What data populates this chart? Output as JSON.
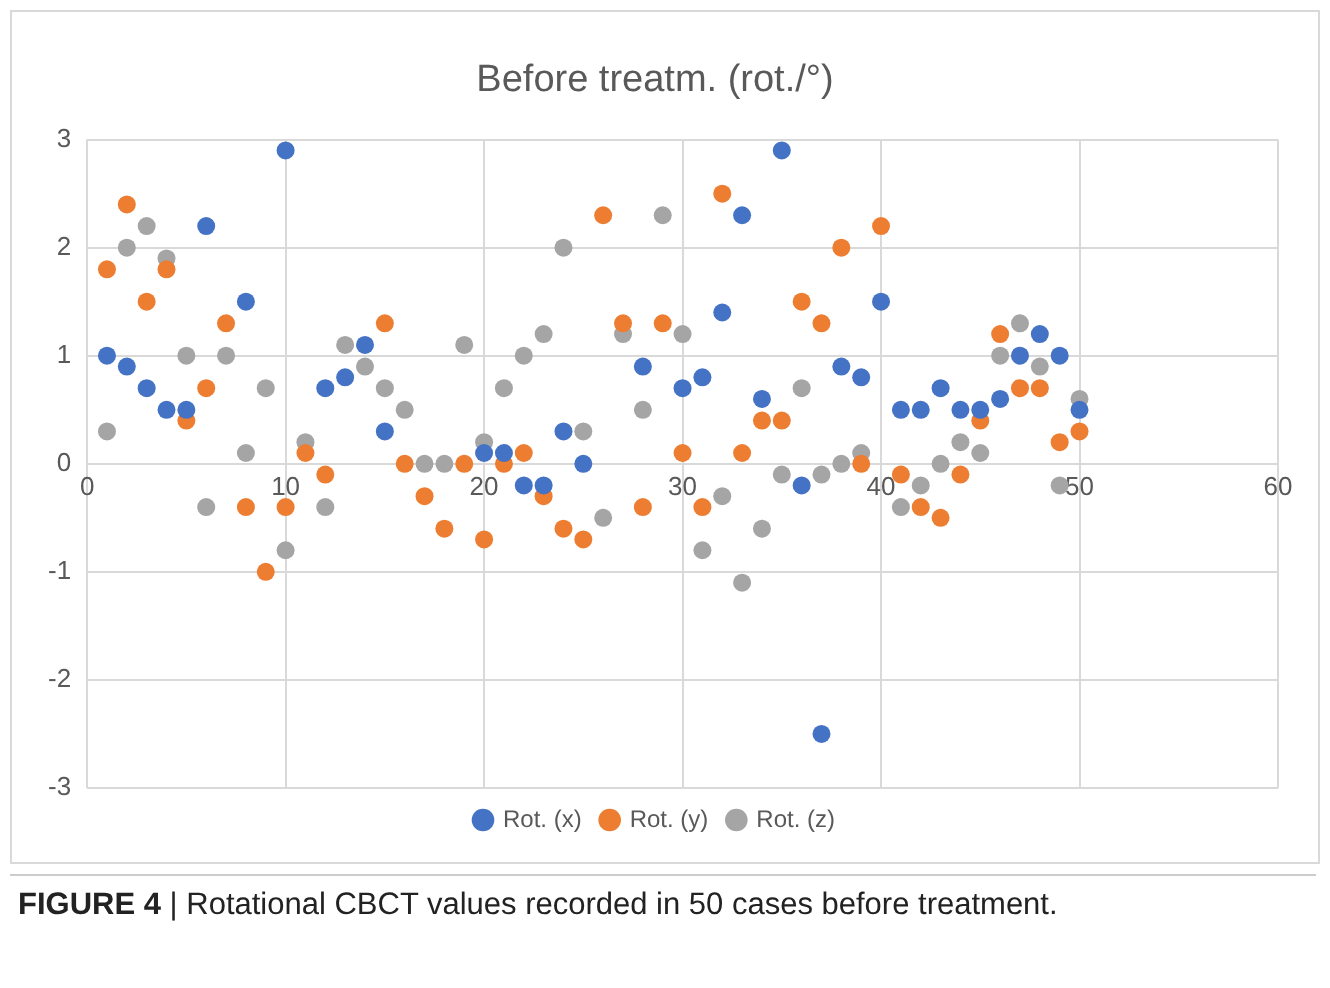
{
  "chart_data": {
    "type": "scatter",
    "title": "Before treatm. (rot./°)",
    "x": [
      1,
      2,
      3,
      4,
      5,
      6,
      7,
      8,
      9,
      10,
      11,
      12,
      13,
      14,
      15,
      16,
      17,
      18,
      19,
      20,
      21,
      22,
      23,
      24,
      25,
      26,
      27,
      28,
      29,
      30,
      31,
      32,
      33,
      34,
      35,
      36,
      37,
      38,
      39,
      40,
      41,
      42,
      43,
      44,
      45,
      46,
      47,
      48,
      49,
      50
    ],
    "series": [
      {
        "name": "Rot. (x)",
        "color": "#4472c4",
        "values": [
          1.0,
          0.9,
          0.7,
          0.5,
          0.5,
          2.2,
          null,
          1.5,
          null,
          2.9,
          null,
          0.7,
          0.8,
          1.1,
          0.3,
          null,
          null,
          null,
          null,
          0.1,
          0.1,
          -0.2,
          -0.2,
          0.3,
          0.0,
          null,
          null,
          0.9,
          null,
          0.7,
          0.8,
          1.4,
          2.3,
          0.6,
          2.9,
          -0.2,
          -2.5,
          0.9,
          0.8,
          1.5,
          0.5,
          0.5,
          0.7,
          0.5,
          0.5,
          0.6,
          1.0,
          1.2,
          1.0,
          0.5
        ]
      },
      {
        "name": "Rot. (y)",
        "color": "#ed7d31",
        "values": [
          1.8,
          2.4,
          1.5,
          1.8,
          0.4,
          0.7,
          1.3,
          -0.4,
          -1.0,
          -0.4,
          0.1,
          -0.1,
          null,
          null,
          1.3,
          0.0,
          -0.3,
          -0.6,
          0.0,
          -0.7,
          0.0,
          0.1,
          -0.3,
          -0.6,
          -0.7,
          2.3,
          1.3,
          -0.4,
          1.3,
          0.1,
          -0.4,
          2.5,
          0.1,
          0.4,
          0.4,
          1.5,
          1.3,
          2.0,
          0.0,
          2.2,
          -0.1,
          -0.4,
          -0.5,
          -0.1,
          0.4,
          1.2,
          0.7,
          0.7,
          0.2,
          0.3
        ]
      },
      {
        "name": "Rot. (z)",
        "color": "#a5a5a5",
        "values": [
          0.3,
          2.0,
          2.2,
          1.9,
          1.0,
          -0.4,
          1.0,
          0.1,
          0.7,
          -0.8,
          0.2,
          -0.4,
          1.1,
          0.9,
          0.7,
          0.5,
          0.0,
          0.0,
          1.1,
          0.2,
          0.7,
          1.0,
          1.2,
          2.0,
          0.3,
          -0.5,
          1.2,
          0.5,
          2.3,
          1.2,
          -0.8,
          -0.3,
          -1.1,
          -0.6,
          -0.1,
          0.7,
          -0.1,
          0.0,
          0.1,
          null,
          -0.4,
          -0.2,
          0.0,
          0.2,
          0.1,
          1.0,
          1.3,
          0.9,
          -0.2,
          0.6
        ]
      }
    ],
    "xlim": [
      0,
      60
    ],
    "xticks": [
      0,
      10,
      20,
      30,
      40,
      50,
      60
    ],
    "ylim": [
      -3,
      3
    ],
    "yticks": [
      -3,
      -2,
      -1,
      0,
      1,
      2,
      3
    ],
    "grid": true,
    "legend": "bottom",
    "marker": "circle",
    "annotations": [
      "FIGURE 4 | Rotational CBCT values recorded in 50 cases before treatment."
    ]
  }
}
